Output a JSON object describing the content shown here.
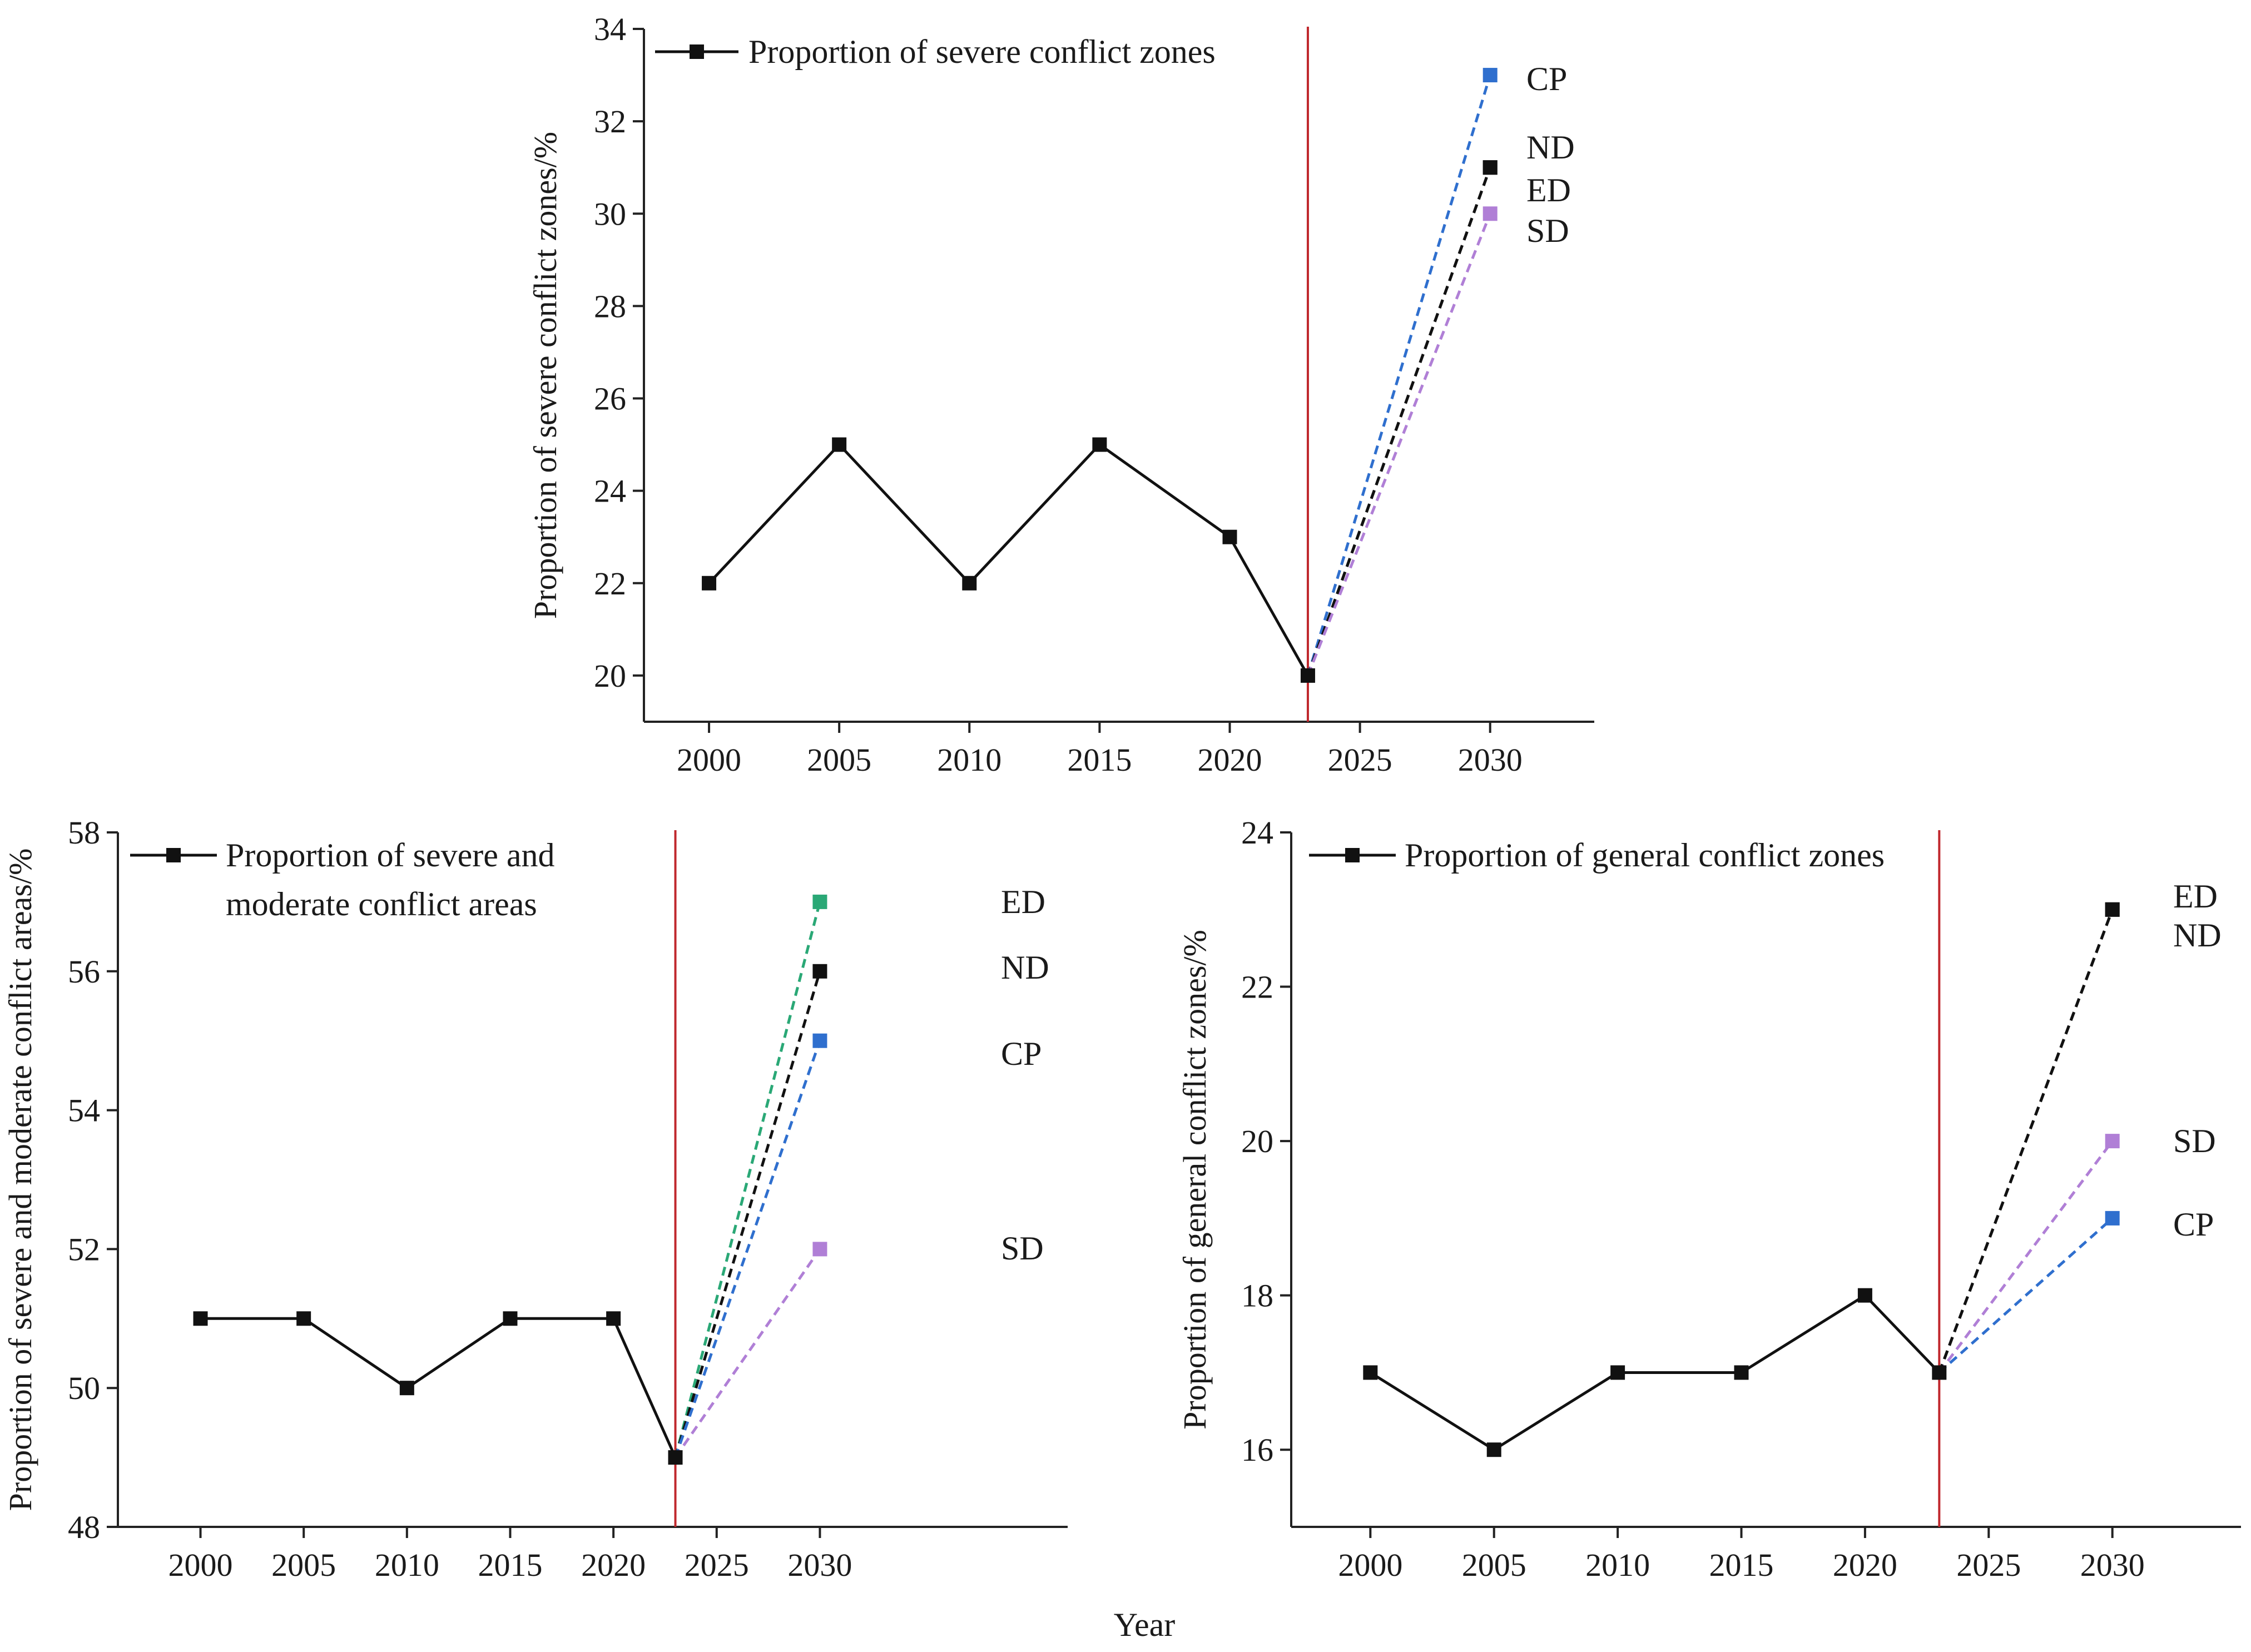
{
  "colors": {
    "main_line": "#111111",
    "divider": "#c0282d",
    "CP": "#2f6fce",
    "ND": "#111111",
    "ED": "#2aa876",
    "SD": "#b07fd6"
  },
  "shared_xlabel": "Year",
  "chart_data": [
    {
      "id": "top",
      "type": "line",
      "title": "",
      "xlabel": "",
      "ylabel": "Proportion of severe conflict zones/%",
      "xlim": [
        1997.5,
        2034
      ],
      "ylim": [
        19,
        34
      ],
      "xticks": [
        2000,
        2005,
        2010,
        2015,
        2020,
        2025,
        2030
      ],
      "yticks": [
        20,
        22,
        24,
        26,
        28,
        30,
        32,
        34
      ],
      "divider_x": 2023,
      "legend": [
        "Proportion of severe conflict zones"
      ],
      "series": [
        {
          "name": "Proportion of severe conflict zones",
          "x": [
            2000,
            2005,
            2010,
            2015,
            2020,
            2023
          ],
          "y": [
            22,
            25,
            22,
            25,
            23,
            20
          ]
        }
      ],
      "scenarios": [
        {
          "name": "CP",
          "y2030": 33,
          "color_key": "CP",
          "label": "CP"
        },
        {
          "name": "ND",
          "y2030": 31,
          "color_key": "ND",
          "label": "ND"
        },
        {
          "name": "ED",
          "y2030": 31,
          "color_key": "ND",
          "label": "ED"
        },
        {
          "name": "SD",
          "y2030": 30,
          "color_key": "SD",
          "label": "SD"
        }
      ]
    },
    {
      "id": "bottom-left",
      "type": "line",
      "title": "",
      "xlabel": "",
      "ylabel": "Proportion of severe and moderate conflict areas/%",
      "xlim": [
        1996,
        2042
      ],
      "ylim": [
        48,
        58
      ],
      "xticks": [
        2000,
        2005,
        2010,
        2015,
        2020,
        2025,
        2030
      ],
      "yticks": [
        48,
        50,
        52,
        54,
        56,
        58
      ],
      "divider_x": 2023,
      "legend": [
        "Proportion of severe and",
        "moderate conflict areas"
      ],
      "series": [
        {
          "name": "Proportion of severe and moderate conflict areas",
          "x": [
            2000,
            2005,
            2010,
            2015,
            2020,
            2023
          ],
          "y": [
            51,
            51,
            50,
            51,
            51,
            49
          ]
        }
      ],
      "scenarios": [
        {
          "name": "ED",
          "y2030": 57,
          "color_key": "ED",
          "label": "ED"
        },
        {
          "name": "ND",
          "y2030": 56,
          "color_key": "ND",
          "label": "ND"
        },
        {
          "name": "CP",
          "y2030": 55,
          "color_key": "CP",
          "label": "CP"
        },
        {
          "name": "SD",
          "y2030": 52,
          "color_key": "SD",
          "label": "SD"
        }
      ]
    },
    {
      "id": "bottom-right",
      "type": "line",
      "title": "",
      "xlabel": "",
      "ylabel": "Proportion of general conflict zones/%",
      "xlim": [
        1996.8,
        2035.2
      ],
      "ylim": [
        15,
        24
      ],
      "xticks": [
        2000,
        2005,
        2010,
        2015,
        2020,
        2025,
        2030
      ],
      "yticks": [
        16,
        18,
        20,
        22,
        24
      ],
      "divider_x": 2023,
      "legend": [
        "Proportion of general conflict zones"
      ],
      "series": [
        {
          "name": "Proportion of general conflict zones",
          "x": [
            2000,
            2005,
            2010,
            2015,
            2020,
            2023
          ],
          "y": [
            17,
            16,
            17,
            17,
            18,
            17
          ]
        }
      ],
      "scenarios": [
        {
          "name": "ED",
          "y2030": 23,
          "color_key": "ND",
          "label": "ED"
        },
        {
          "name": "ND",
          "y2030": 23,
          "color_key": "ND",
          "label": "ND"
        },
        {
          "name": "SD",
          "y2030": 20,
          "color_key": "SD",
          "label": "SD"
        },
        {
          "name": "CP",
          "y2030": 19,
          "color_key": "CP",
          "label": "CP"
        }
      ]
    }
  ]
}
